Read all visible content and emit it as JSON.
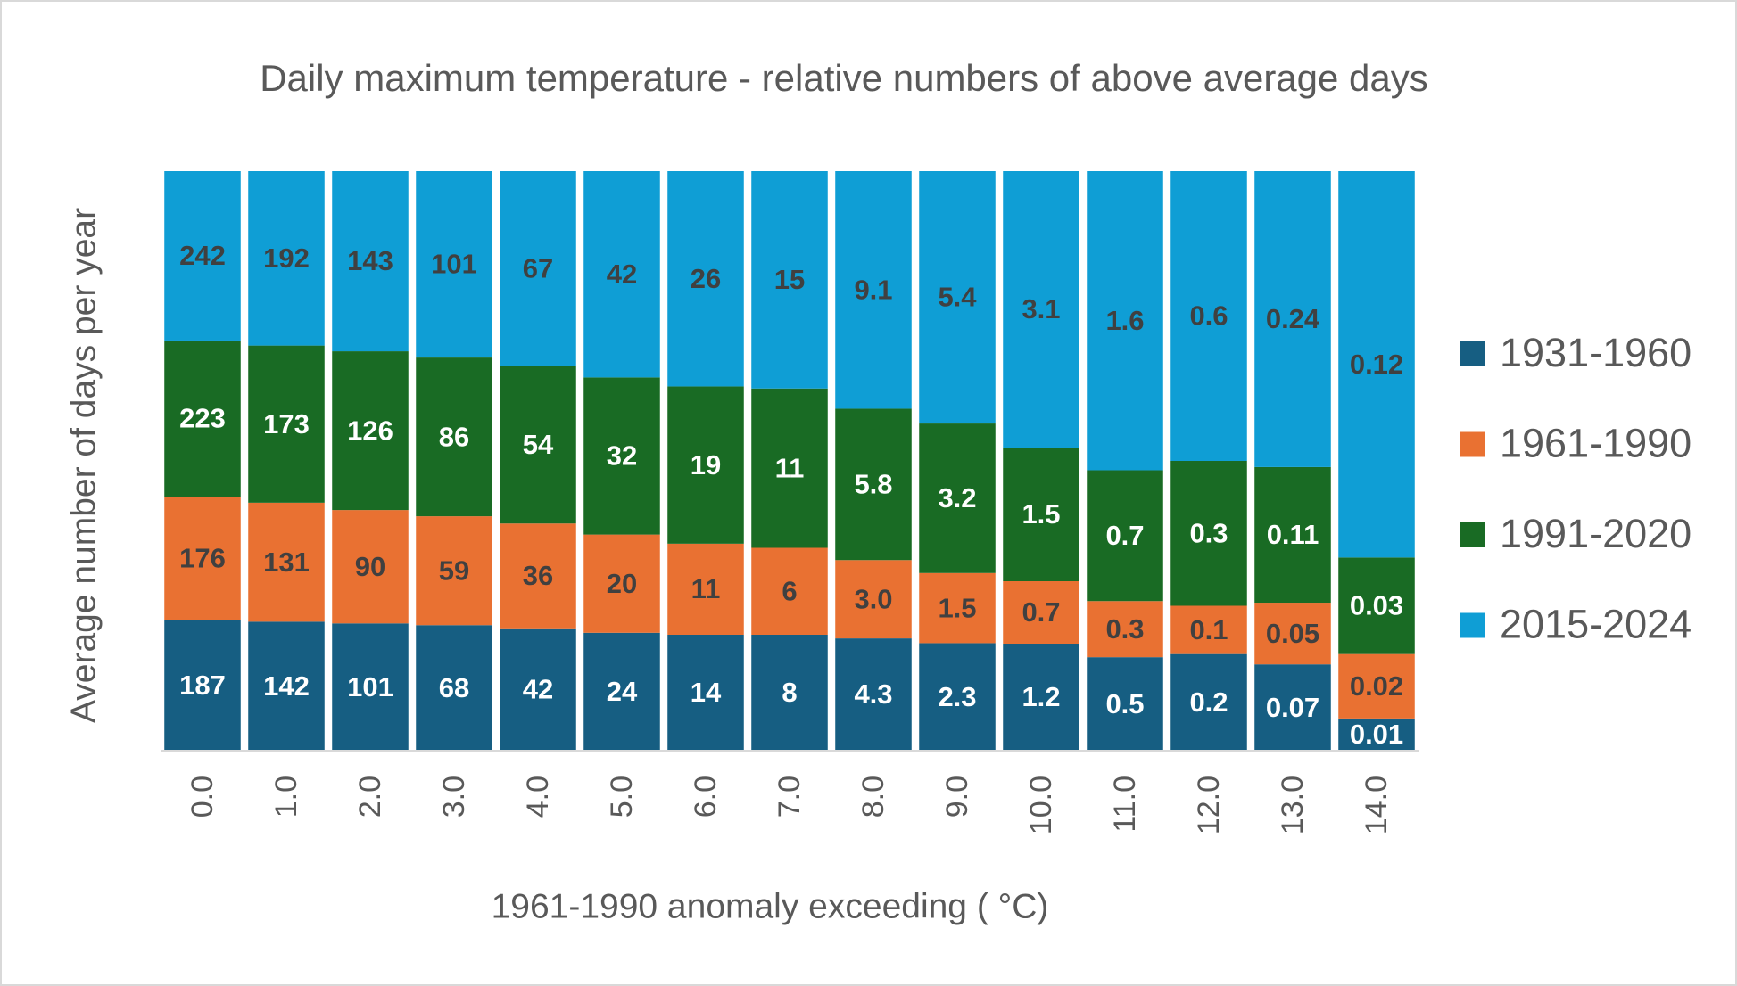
{
  "chart_data": {
    "type": "bar",
    "stacking": "percent",
    "title": "Daily maximum temperature - relative numbers of above average days",
    "x_label": "1961-1990 anomaly exceeding ( °C)",
    "y_label": "Average number of days per year",
    "categories": [
      "0.0",
      "1.0",
      "2.0",
      "3.0",
      "4.0",
      "5.0",
      "6.0",
      "7.0",
      "8.0",
      "9.0",
      "10.0",
      "11.0",
      "12.0",
      "13.0",
      "14.0"
    ],
    "legend": "right",
    "series": [
      {
        "name": "1931-1960",
        "color": "#165e82",
        "label_color": "#ffffff",
        "values": [
          187,
          142,
          101,
          68,
          42,
          24,
          14,
          8,
          4.3,
          2.3,
          1.2,
          0.5,
          0.2,
          0.07,
          0.01
        ]
      },
      {
        "name": "1961-1990",
        "color": "#e97132",
        "label_color": "#404040",
        "values": [
          176,
          131,
          90,
          59,
          36,
          20,
          11,
          6,
          3.0,
          1.5,
          0.7,
          0.3,
          0.1,
          0.05,
          0.02
        ],
        "value_labels": [
          "176",
          "131",
          "90",
          "59",
          "36",
          "20",
          "11",
          "6",
          "3.0",
          "1.5",
          "0.7",
          "0.3",
          "0.1",
          "0.05",
          "0.02"
        ]
      },
      {
        "name": "1991-2020",
        "color": "#196b24",
        "label_color": "#ffffff",
        "values": [
          223,
          173,
          126,
          86,
          54,
          32,
          19,
          11,
          5.8,
          3.2,
          1.5,
          0.7,
          0.3,
          0.11,
          0.03
        ]
      },
      {
        "name": "2015-2024",
        "color": "#0f9ed5",
        "label_color": "#404040",
        "values": [
          242,
          192,
          143,
          101,
          67,
          42,
          26,
          15,
          9.1,
          5.4,
          3.1,
          1.6,
          0.6,
          0.24,
          0.12
        ]
      }
    ]
  }
}
